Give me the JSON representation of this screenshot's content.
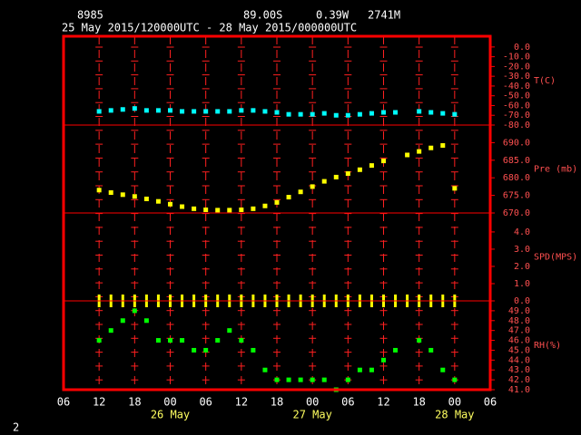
{
  "header": {
    "station": "8985",
    "lat": "89.00S",
    "lon": "0.39W",
    "elev": "2741M",
    "period": "25 May 2015/120000UTC - 28 May 2015/000000UTC"
  },
  "footer": "2",
  "chart_data": {
    "type": "scatter",
    "x": [
      "2015-05-25 12:00",
      "2015-05-25 14:00",
      "2015-05-25 16:00",
      "2015-05-25 18:00",
      "2015-05-25 20:00",
      "2015-05-25 22:00",
      "2015-05-26 00:00",
      "2015-05-26 02:00",
      "2015-05-26 04:00",
      "2015-05-26 06:00",
      "2015-05-26 08:00",
      "2015-05-26 10:00",
      "2015-05-26 12:00",
      "2015-05-26 14:00",
      "2015-05-26 16:00",
      "2015-05-26 18:00",
      "2015-05-26 20:00",
      "2015-05-26 22:00",
      "2015-05-27 00:00",
      "2015-05-27 02:00",
      "2015-05-27 04:00",
      "2015-05-27 06:00",
      "2015-05-27 08:00",
      "2015-05-27 10:00",
      "2015-05-27 12:00",
      "2015-05-27 14:00",
      "2015-05-27 16:00",
      "2015-05-27 18:00",
      "2015-05-27 20:00",
      "2015-05-27 22:00",
      "2015-05-28 00:00"
    ],
    "xlim": [
      "2015-05-25 06:00",
      "2015-05-28 06:00"
    ],
    "xticks": [
      {
        "value": "2015-05-25 06:00",
        "label": "06"
      },
      {
        "value": "2015-05-25 12:00",
        "label": "12"
      },
      {
        "value": "2015-05-25 18:00",
        "label": "18"
      },
      {
        "value": "2015-05-26 00:00",
        "label": "00"
      },
      {
        "value": "2015-05-26 06:00",
        "label": "06"
      },
      {
        "value": "2015-05-26 12:00",
        "label": "12"
      },
      {
        "value": "2015-05-26 18:00",
        "label": "18"
      },
      {
        "value": "2015-05-27 00:00",
        "label": "00"
      },
      {
        "value": "2015-05-27 06:00",
        "label": "06"
      },
      {
        "value": "2015-05-27 12:00",
        "label": "12"
      },
      {
        "value": "2015-05-27 18:00",
        "label": "18"
      },
      {
        "value": "2015-05-28 00:00",
        "label": "00"
      },
      {
        "value": "2015-05-28 06:00",
        "label": "06"
      }
    ],
    "dayticks": [
      {
        "value": "2015-05-26 00:00",
        "label": "26 May"
      },
      {
        "value": "2015-05-27 00:00",
        "label": "27 May"
      },
      {
        "value": "2015-05-28 00:00",
        "label": "28 May"
      }
    ],
    "grid": true,
    "panels": [
      {
        "label": "T(C)",
        "color": "#00ffff",
        "marker": "dot",
        "ylim": [
          -80,
          11
        ],
        "yticks": [
          {
            "value": 0,
            "label": "0.0"
          },
          {
            "value": -10,
            "label": "-10.0"
          },
          {
            "value": -20,
            "label": "-20.0"
          },
          {
            "value": -30,
            "label": "-30.0"
          },
          {
            "value": -40,
            "label": "-40.0"
          },
          {
            "value": -50,
            "label": "-50.0"
          },
          {
            "value": -60,
            "label": "-60.0"
          },
          {
            "value": -70,
            "label": "-70.0"
          },
          {
            "value": -80,
            "label": "-80.0"
          }
        ],
        "values": [
          -66,
          -65,
          -64,
          -63,
          -65,
          -65,
          -65,
          -66,
          -66,
          -66,
          -66,
          -66,
          -65,
          -65,
          -66,
          -67,
          -69,
          -69,
          -69,
          -68,
          -70,
          -70,
          -69,
          -68,
          -67,
          -67,
          null,
          -66,
          -67,
          -68,
          -69
        ]
      },
      {
        "label": "Pre (mb)",
        "color": "#ffff00",
        "marker": "dot",
        "ylim": [
          670,
          695
        ],
        "yticks": [
          {
            "value": 670,
            "label": "670.0"
          },
          {
            "value": 675,
            "label": "675.0"
          },
          {
            "value": 680,
            "label": "680.0"
          },
          {
            "value": 685,
            "label": "685.0"
          },
          {
            "value": 690,
            "label": "690.0"
          }
        ],
        "values": [
          676.5,
          675.8,
          675.2,
          674.7,
          674,
          673.3,
          672.5,
          671.8,
          671.2,
          670.9,
          670.8,
          670.8,
          670.9,
          671.2,
          672,
          673,
          674.5,
          676,
          677.5,
          679,
          680.2,
          681.2,
          682.3,
          683.5,
          684.8,
          null,
          686.5,
          687.5,
          688.5,
          689.2,
          677
        ]
      },
      {
        "label": "SPD(MPS)",
        "color": "#ffff00",
        "marker": "bar",
        "ylim": [
          0,
          5.1
        ],
        "yticks": [
          {
            "value": 0,
            "label": "0.0"
          },
          {
            "value": 1,
            "label": "1.0"
          },
          {
            "value": 2,
            "label": "2.0"
          },
          {
            "value": 3,
            "label": "3.0"
          },
          {
            "value": 4,
            "label": "4.0"
          }
        ],
        "values": [
          0,
          0,
          0,
          0,
          0,
          0,
          0,
          0,
          0,
          0,
          0,
          0,
          0,
          0,
          0,
          0,
          0,
          0,
          0,
          0,
          0,
          0,
          0,
          0,
          0,
          0,
          0,
          0,
          0,
          0,
          0
        ]
      },
      {
        "label": "RH(%)",
        "color": "#00ff00",
        "marker": "dot",
        "ylim": [
          41,
          50
        ],
        "yticks": [
          {
            "value": 41,
            "label": "41.0"
          },
          {
            "value": 42,
            "label": "42.0"
          },
          {
            "value": 43,
            "label": "43.0"
          },
          {
            "value": 44,
            "label": "44.0"
          },
          {
            "value": 45,
            "label": "45.0"
          },
          {
            "value": 46,
            "label": "46.0"
          },
          {
            "value": 47,
            "label": "47.0"
          },
          {
            "value": 48,
            "label": "48.0"
          },
          {
            "value": 49,
            "label": "49.0"
          }
        ],
        "values": [
          46,
          47,
          48,
          49,
          48,
          46,
          46,
          46,
          45,
          45,
          46,
          47,
          46,
          45,
          43,
          42,
          42,
          42,
          42,
          42,
          41,
          42,
          43,
          43,
          44,
          45,
          null,
          46,
          45,
          43,
          42
        ]
      }
    ]
  }
}
